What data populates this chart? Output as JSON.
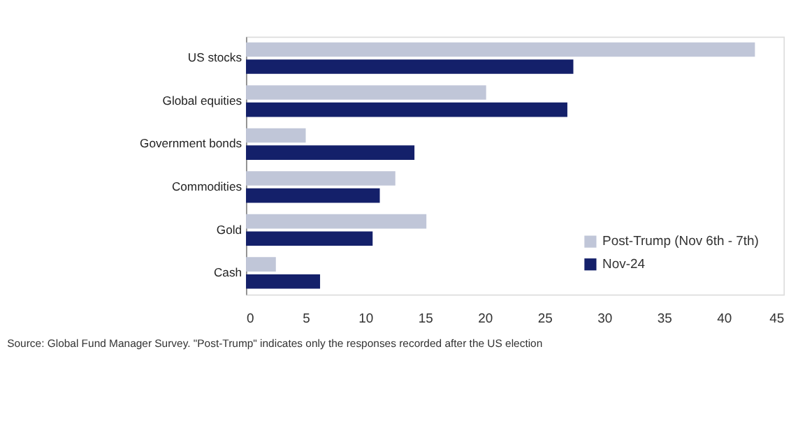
{
  "chart_data": {
    "type": "bar",
    "orientation": "horizontal",
    "categories": [
      "US stocks",
      "Global equities",
      "Government bonds",
      "Commodities",
      "Gold",
      "Cash"
    ],
    "series": [
      {
        "name": "Post-Trump (Nov 6th - 7th)",
        "color": "#c0c6d8",
        "values": [
          42.6,
          20.1,
          5.0,
          12.5,
          15.1,
          2.5
        ]
      },
      {
        "name": "Nov-24",
        "color": "#14206a",
        "values": [
          27.4,
          26.9,
          14.1,
          11.2,
          10.6,
          6.2
        ]
      }
    ],
    "xlim": [
      0,
      45
    ],
    "xticks": [
      0,
      5,
      10,
      15,
      20,
      25,
      30,
      35,
      40,
      45
    ],
    "grid": false,
    "legend": "bottom right",
    "annotations": [
      "Source: Global Fund Manager Survey. \"Post-Trump\" indicates only the responses recorded after the US election"
    ]
  }
}
